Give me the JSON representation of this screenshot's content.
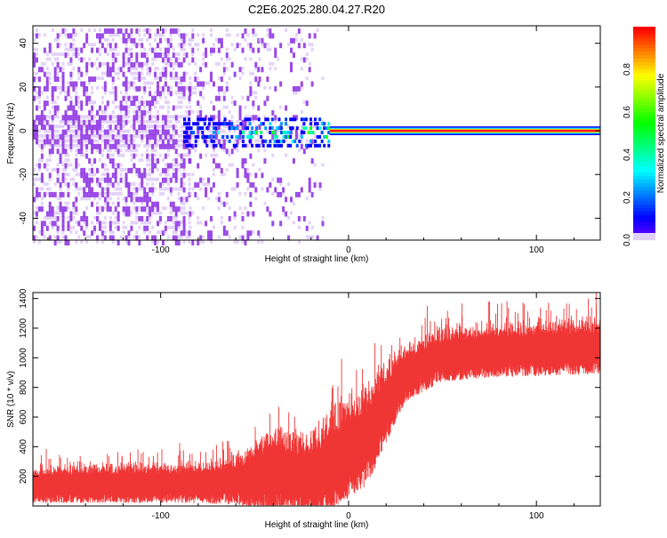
{
  "chart_data": [
    {
      "type": "heatmap",
      "title": "C2E6.2025.280.04.27.R20",
      "xlabel": "Height of straight line (km)",
      "ylabel": "Frequency (Hz)",
      "xlim": [
        -168,
        134
      ],
      "ylim": [
        -50,
        48
      ],
      "xticks": [
        -100,
        0,
        100
      ],
      "yticks": [
        -40,
        -20,
        0,
        20,
        40
      ],
      "colorbar": {
        "label": "Normalized spectral amplitude",
        "range": [
          0,
          1
        ],
        "ticks": [
          "0.0",
          "0.2",
          "0.4",
          "0.6",
          "0.8"
        ]
      },
      "carrier_frequency": 0,
      "strong_carrier_from_km": -10,
      "noise_regions": [
        {
          "from_km": -168,
          "to_km": -85,
          "density": 0.55
        },
        {
          "from_km": -85,
          "to_km": -48,
          "density": 0.3
        },
        {
          "from_km": -48,
          "to_km": -20,
          "density": 0.15
        },
        {
          "from_km": -20,
          "to_km": -12,
          "density": 0.05
        }
      ]
    },
    {
      "type": "line",
      "xlabel": "Height of straight line (km)",
      "ylabel": "SNR (10 * v/v)",
      "xlim": [
        -168,
        134
      ],
      "ylim": [
        0,
        1440
      ],
      "xticks": [
        -100,
        0,
        100
      ],
      "yticks": [
        200,
        400,
        600,
        800,
        1000,
        1200,
        1400
      ],
      "color": "#f03535",
      "trend": {
        "x": [
          -168,
          -90,
          -60,
          -50,
          -40,
          -30,
          -20,
          -10,
          0,
          10,
          20,
          30,
          50,
          80,
          110,
          134
        ],
        "center": [
          160,
          170,
          190,
          220,
          280,
          260,
          240,
          330,
          430,
          520,
          720,
          920,
          1040,
          1070,
          1090,
          1100
        ],
        "spread": [
          140,
          150,
          180,
          250,
          330,
          300,
          300,
          380,
          380,
          380,
          300,
          220,
          200,
          200,
          210,
          210
        ]
      }
    }
  ]
}
